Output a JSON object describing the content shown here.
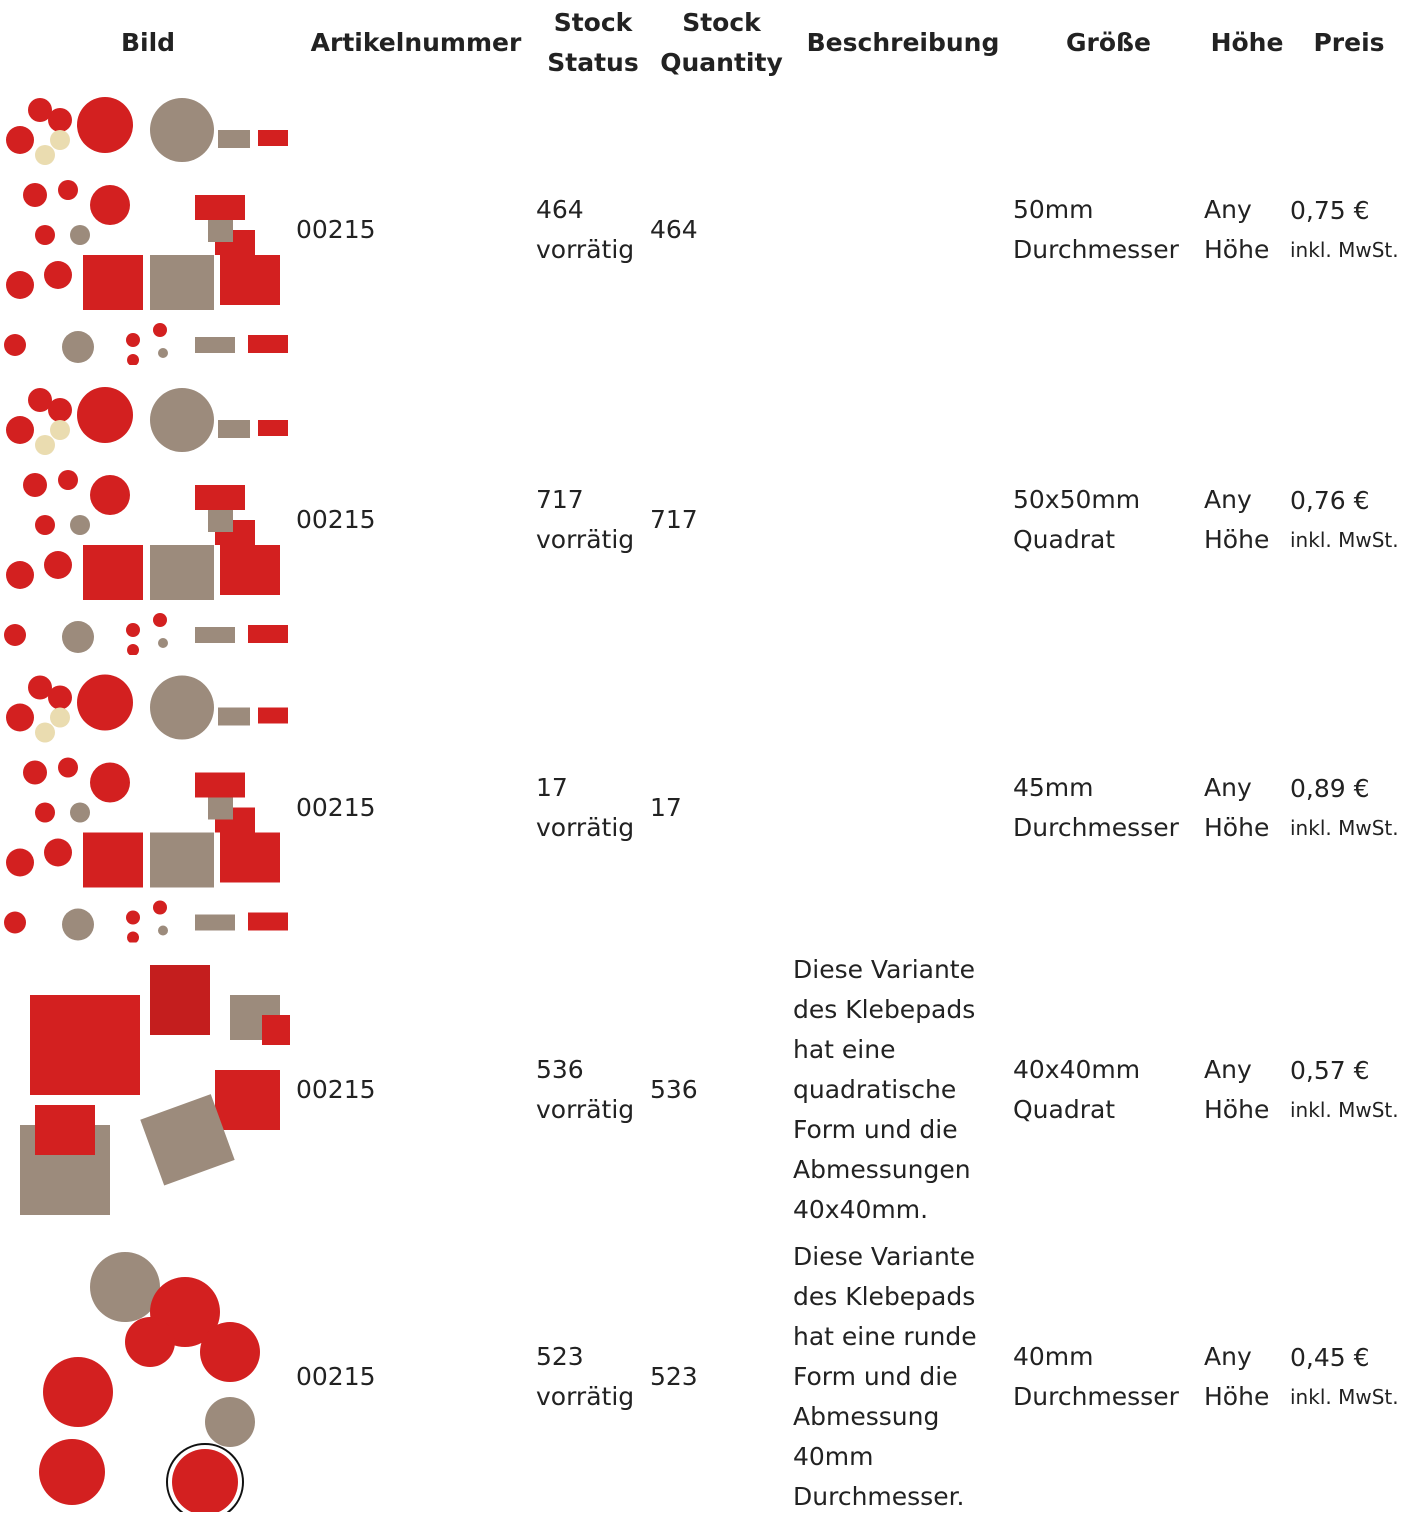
{
  "table": {
    "columns": [
      "Bild",
      "Artikelnummer",
      "Stock Status",
      "Stock Quantity",
      "Beschreibung",
      "Größe",
      "Höhe",
      "Preis"
    ],
    "rows": [
      {
        "sku": "00215",
        "stock_status": "464 vorrätig",
        "stock_quantity": "464",
        "size": "50mm Durchmesser",
        "height": "Any Höhe",
        "price": "0,75 €",
        "tax": "inkl. MwSt."
      },
      {
        "sku": "00215",
        "stock_status": "717 vorrätig",
        "stock_quantity": "717",
        "size": "50x50mm Quadrat",
        "height": "Any Höhe",
        "price": "0,76 €",
        "tax": "inkl. MwSt."
      },
      {
        "sku": "00215",
        "stock_status": "17 vorrätig",
        "stock_quantity": "17",
        "size": "45mm Durchmesser",
        "height": "Any Höhe",
        "price": "0,89 €",
        "tax": "inkl. MwSt."
      },
      {
        "sku": "00215",
        "stock_status": "536 vorrätig",
        "stock_quantity": "536",
        "description": "Diese Variante des Klebepads hat eine quadratische Form und die Abmessungen 40x40mm.",
        "size": "40x40mm Quadrat",
        "height": "Any Höhe",
        "price": "0,57 €",
        "tax": "inkl. MwSt."
      },
      {
        "sku": "00215",
        "stock_status": "523 vorrätig",
        "stock_quantity": "523",
        "description": "Diese Variante des Klebepads hat eine runde Form und die Abmessung 40mm Durchmesser.",
        "size": "40mm Durchmesser",
        "height": "Any Höhe",
        "price": "0,45 €",
        "tax": "inkl. MwSt."
      }
    ]
  }
}
